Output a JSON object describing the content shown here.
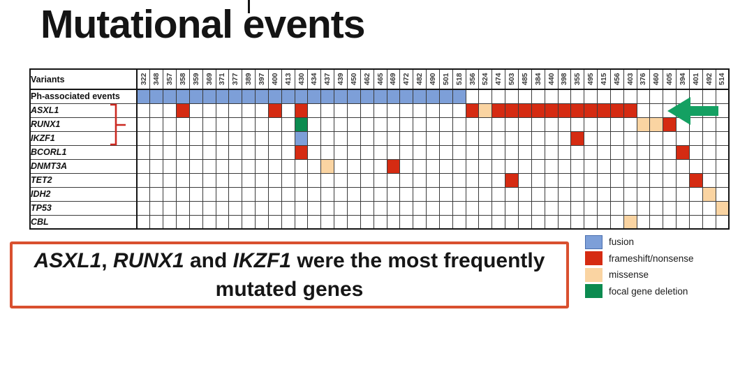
{
  "title": "Mutational events",
  "colors": {
    "fusion": "#7d9fd8",
    "frameshift": "#d52b12",
    "missense": "#fad4a2",
    "focal_deletion": "#0c8b50",
    "arrow": "#14a062",
    "bracket": "#cc2a22",
    "callout_border": "#d9502f"
  },
  "table": {
    "header_label": "Variants"
  },
  "chart_data": {
    "type": "heatmap",
    "title": "Mutational events",
    "legend_position": "bottom-right",
    "grid": true,
    "value_types": [
      "fusion",
      "frameshift/nonsense",
      "missense",
      "focal gene deletion"
    ],
    "x_categories": [
      "322",
      "348",
      "357",
      "358",
      "359",
      "369",
      "371",
      "377",
      "389",
      "397",
      "400",
      "413",
      "430",
      "434",
      "437",
      "439",
      "450",
      "462",
      "465",
      "469",
      "472",
      "482",
      "490",
      "501",
      "518",
      "356",
      "524",
      "474",
      "503",
      "485",
      "384",
      "440",
      "398",
      "355",
      "495",
      "415",
      "456",
      "403",
      "376",
      "460",
      "405",
      "394",
      "401",
      "492",
      "514"
    ],
    "rows": [
      {
        "label": "Ph-associated events",
        "italic": false,
        "cells": {
          "322": "fusion",
          "348": "fusion",
          "357": "fusion",
          "358": "fusion",
          "359": "fusion",
          "369": "fusion",
          "371": "fusion",
          "377": "fusion",
          "389": "fusion",
          "397": "fusion",
          "400": "fusion",
          "413": "fusion",
          "430": "fusion",
          "434": "fusion",
          "437": "fusion",
          "439": "fusion",
          "450": "fusion",
          "462": "fusion",
          "465": "fusion",
          "469": "fusion",
          "472": "fusion",
          "482": "fusion",
          "490": "fusion",
          "501": "fusion",
          "518": "fusion"
        }
      },
      {
        "label": "ASXL1",
        "italic": true,
        "cells": {
          "358": "frameshift",
          "400": "frameshift",
          "430": "frameshift",
          "356": "frameshift",
          "524": "missense",
          "474": "frameshift",
          "503": "frameshift",
          "485": "frameshift",
          "384": "frameshift",
          "440": "frameshift",
          "398": "frameshift",
          "355": "frameshift",
          "495": "frameshift",
          "415": "frameshift",
          "456": "frameshift",
          "403": "frameshift"
        }
      },
      {
        "label": "RUNX1",
        "italic": true,
        "cells": {
          "430": "focal_deletion",
          "376": "missense",
          "460": "missense",
          "405": "frameshift"
        }
      },
      {
        "label": "IKZF1",
        "italic": true,
        "cells": {
          "430": "fusion",
          "355": "frameshift"
        }
      },
      {
        "label": "BCORL1",
        "italic": true,
        "cells": {
          "430": "frameshift",
          "394": "frameshift"
        }
      },
      {
        "label": "DNMT3A",
        "italic": true,
        "cells": {
          "437": "missense",
          "469": "frameshift"
        }
      },
      {
        "label": "TET2",
        "italic": true,
        "cells": {
          "503": "frameshift",
          "401": "frameshift"
        }
      },
      {
        "label": "IDH2",
        "italic": true,
        "cells": {
          "492": "missense"
        }
      },
      {
        "label": "TP53",
        "italic": true,
        "cells": {
          "514": "missense"
        }
      },
      {
        "label": "CBL",
        "italic": true,
        "cells": {
          "403": "missense"
        }
      }
    ]
  },
  "legend": {
    "items": [
      {
        "label": "fusion",
        "type": "fusion"
      },
      {
        "label": "frameshift/nonsense",
        "type": "frameshift"
      },
      {
        "label": "missense",
        "type": "missense"
      },
      {
        "label": "focal gene deletion",
        "type": "focal_deletion"
      }
    ]
  },
  "callout": {
    "lines": [
      [
        {
          "text": "ASXL1",
          "italic": true
        },
        {
          "text": ", ",
          "italic": false
        },
        {
          "text": "RUNX1",
          "italic": true
        },
        {
          "text": " and ",
          "italic": false
        },
        {
          "text": "IKZF1",
          "italic": true
        },
        {
          "text": " were the most frequently",
          "italic": false
        }
      ],
      [
        {
          "text": "mutated genes",
          "italic": false
        }
      ]
    ]
  }
}
